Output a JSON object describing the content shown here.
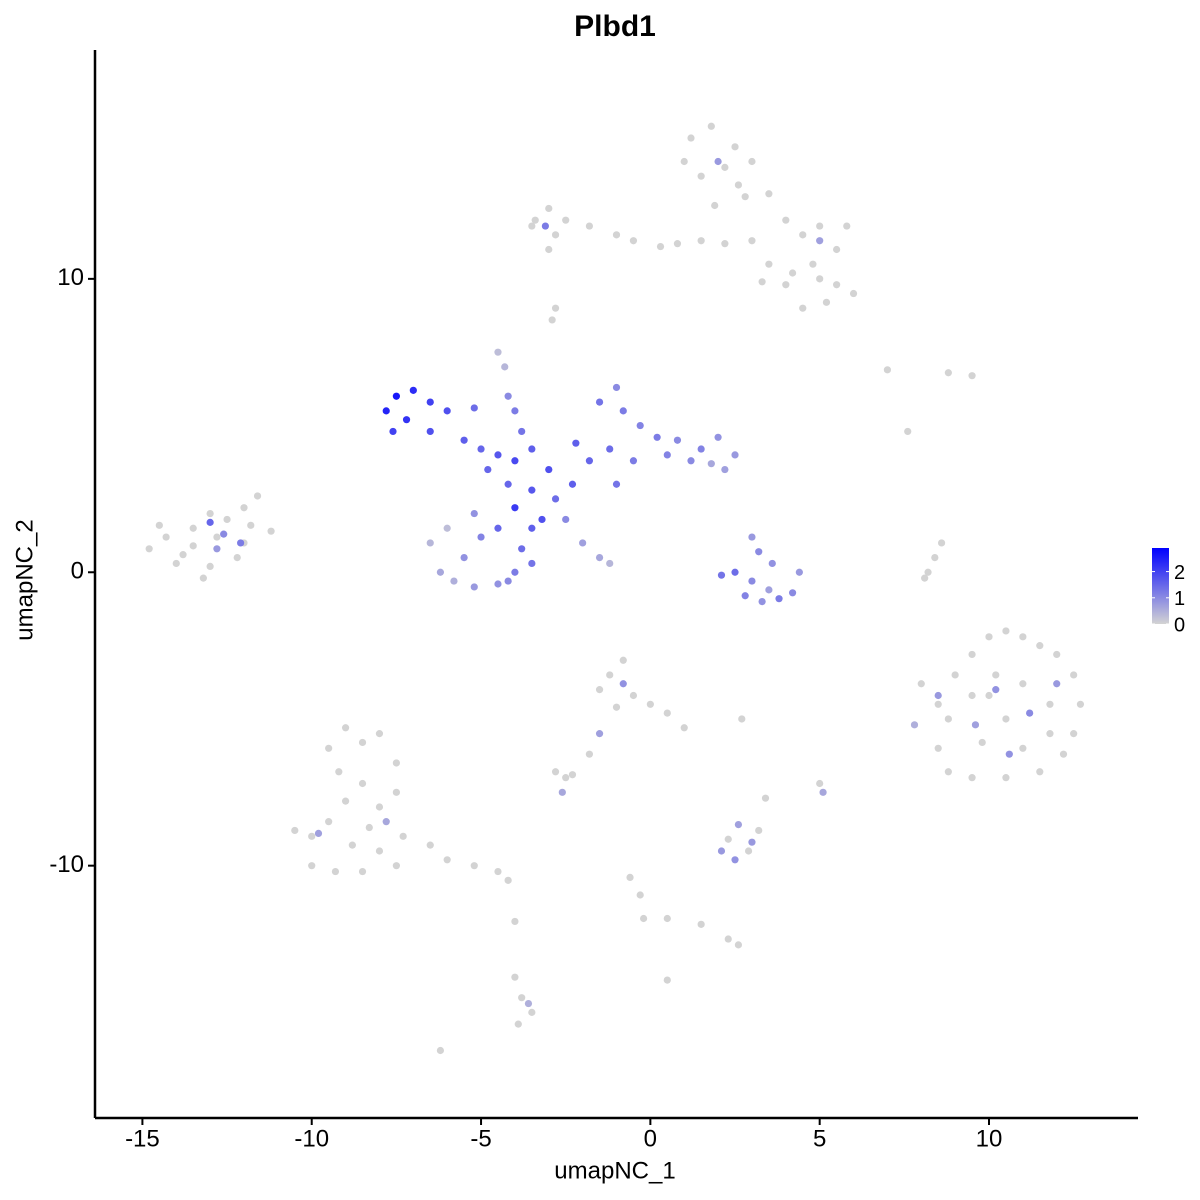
{
  "chart_data": {
    "type": "scatter",
    "title": "Plbd1",
    "x_label": "umapNC_1",
    "y_label": "umapNC_2",
    "xlim": [
      -16.4,
      14.4
    ],
    "ylim": [
      -18.6,
      17.8
    ],
    "xticks": [
      -15,
      -10,
      -5,
      0,
      5,
      10
    ],
    "yticks": [
      -10,
      0,
      10
    ],
    "color_low": "#d3d3d3",
    "color_high": "#0000ff",
    "colorlim": [
      0,
      2.9
    ],
    "colorticks": [
      0,
      1,
      2
    ],
    "x": [
      1.2,
      1.8,
      2.5,
      1.5,
      2.2,
      3,
      2.8,
      1.9,
      3.5,
      4,
      4.5,
      5,
      5.8,
      5.5,
      4.8,
      5.5,
      6,
      5.2,
      4.5,
      4,
      3.5,
      3,
      2.2,
      1.5,
      0.8,
      0.3,
      -0.5,
      -1,
      -1.8,
      -2.5,
      -3,
      -3.4,
      -2.8,
      -3,
      -3.5,
      1.0,
      2.6,
      3.3,
      4.2,
      5,
      2.0,
      -3.1,
      5,
      -2.9,
      -2.8,
      -14.8,
      -14.3,
      -13.8,
      -13.5,
      -13,
      -12.5,
      -12,
      -11.6,
      -11.2,
      -12,
      -13,
      -14,
      -13.5,
      -12.8,
      -12.2,
      -11.8,
      -14.5,
      -13.2,
      -13,
      -12.6,
      -12.1,
      -12.8,
      -7.5,
      -7.8,
      -7,
      -7.2,
      -6.5,
      -6,
      -7.6,
      -5.5,
      -5,
      -6.5,
      -5.2,
      -4.5,
      -4,
      -3.5,
      -3,
      -4.2,
      -3.5,
      -2.8,
      -2.3,
      -4.8,
      -3.8,
      -4,
      -3.2,
      -3.5,
      -4.5,
      -4.3,
      -4.2,
      -4,
      -1.5,
      -1,
      -0.8,
      -0.3,
      0.2,
      0.8,
      1.5,
      2,
      2.5,
      2.2,
      1.2,
      -1.2,
      -1.8,
      -2.2,
      -0.5,
      -1,
      0.5,
      1.8,
      -6.5,
      -6.2,
      -5.8,
      -5.2,
      -4.5,
      -4,
      -3.8,
      -4.5,
      -5,
      -5.5,
      -6,
      -5.2,
      -4.2,
      -3.5,
      -2.5,
      -2,
      -1.5,
      -1.2,
      3,
      3.2,
      2.5,
      2.1,
      2.8,
      3.3,
      3.8,
      4.2,
      4.4,
      3.6,
      3.0,
      3.5,
      8,
      8.5,
      9,
      9.5,
      10,
      10.5,
      11,
      11.5,
      12,
      12.5,
      12.7,
      12.5,
      12.2,
      11.5,
      10.5,
      9.5,
      8.8,
      8.5,
      8.8,
      9.5,
      10.2,
      11,
      11.8,
      10.5,
      9.8,
      11,
      11.8,
      10,
      8.5,
      10.2,
      11.2,
      9.6,
      12,
      10.6,
      -9.5,
      -9,
      -8.5,
      -8,
      -7.5,
      -7.5,
      -8,
      -8.5,
      -9,
      -9.5,
      -10,
      -10.5,
      -10,
      -9.3,
      -8.5,
      -8,
      -7.3,
      -7.5,
      -6.5,
      -6,
      -5.2,
      -4.5,
      -4.2,
      -9.2,
      -8.3,
      -8.8,
      -9.8,
      -7.8,
      -1.2,
      -0.8,
      -1.5,
      -0.5,
      0,
      0.5,
      1,
      -1,
      -0.8,
      -2.8,
      -2.5,
      -2.3,
      -2.6,
      -1.5,
      -1.8,
      2.1,
      2.5,
      2.9,
      3.2,
      2.6,
      2.3,
      3.0,
      -0.6,
      -0.3,
      -0.2,
      0.5,
      1.5,
      2.3,
      2.6,
      -4,
      -3.8,
      -3.5,
      -3.9,
      -3.6,
      -6.2,
      -4,
      0.5,
      8.2,
      8.4,
      8.6,
      8.1,
      5.0,
      5.1,
      7.8,
      8.8,
      9.5,
      7.6,
      7,
      2.7,
      3.4
    ],
    "y": [
      14.8,
      15.2,
      14.5,
      13.5,
      13.8,
      14,
      12.8,
      12.5,
      12.9,
      12,
      11.5,
      11.8,
      11.8,
      11,
      10.5,
      9.8,
      9.5,
      9.2,
      9,
      9.8,
      10.5,
      11.3,
      11.2,
      11.3,
      11.2,
      11.1,
      11.3,
      11.5,
      11.8,
      12,
      12.4,
      12,
      11.5,
      11,
      11.8,
      14.0,
      13.2,
      9.9,
      10.2,
      10,
      14.0,
      11.8,
      11.3,
      8.6,
      9.0,
      0.8,
      1.2,
      0.6,
      1.5,
      2,
      1.8,
      2.2,
      2.6,
      1.4,
      1,
      0.2,
      0.3,
      0.9,
      1.2,
      0.5,
      1.6,
      1.6,
      -0.2,
      1.7,
      1.3,
      1.0,
      0.8,
      6,
      5.5,
      6.2,
      5.2,
      5.8,
      5.5,
      4.8,
      4.5,
      4.2,
      4.8,
      5.6,
      4,
      3.8,
      4.2,
      3.5,
      3,
      2.8,
      2.5,
      3,
      3.5,
      4.8,
      2.2,
      1.8,
      1.5,
      7.5,
      7.0,
      6,
      5.5,
      5.8,
      6.3,
      5.5,
      5,
      4.6,
      4.5,
      4.2,
      4.6,
      4.0,
      3.5,
      3.8,
      4.2,
      3.8,
      4.4,
      3.8,
      3,
      4.0,
      3.7,
      1,
      0,
      -0.3,
      -0.5,
      -0.4,
      0,
      0.8,
      1.5,
      1.2,
      0.5,
      1.5,
      2,
      -0.3,
      0.3,
      1.8,
      1,
      0.5,
      0.3,
      1.2,
      0.7,
      0,
      -0.1,
      -0.8,
      -1,
      -0.9,
      -0.7,
      0,
      0.3,
      -0.3,
      -0.6,
      -3.8,
      -4.5,
      -3.5,
      -2.8,
      -2.2,
      -2,
      -2.2,
      -2.5,
      -2.8,
      -3.5,
      -4.5,
      -5.5,
      -6.2,
      -6.8,
      -7,
      -7,
      -6.8,
      -6,
      -5,
      -4.2,
      -3.5,
      -3.8,
      -4.5,
      -5,
      -5.8,
      -6,
      -5.5,
      -4.2,
      -4.2,
      -4,
      -4.8,
      -5.2,
      -3.8,
      -6.2,
      -6,
      -5.3,
      -5.8,
      -5.5,
      -6.5,
      -7.5,
      -8,
      -7.2,
      -7.8,
      -8.5,
      -9,
      -8.8,
      -10,
      -10.2,
      -10.2,
      -9.5,
      -9,
      -10,
      -9.3,
      -9.8,
      -10,
      -10.2,
      -10.5,
      -6.8,
      -8.7,
      -9.3,
      -8.9,
      -8.5,
      -3.5,
      -3.0,
      -4,
      -4.2,
      -4.5,
      -4.8,
      -5.3,
      -4.6,
      -3.8,
      -6.8,
      -7.0,
      -6.9,
      -7.5,
      -5.5,
      -6.2,
      -9.5,
      -9.8,
      -9.5,
      -8.8,
      -8.6,
      -9.1,
      -9.2,
      -10.4,
      -11,
      -11.8,
      -11.8,
      -12,
      -12.5,
      -12.7,
      -13.8,
      -14.5,
      -15,
      -15.4,
      -14.7,
      -16.3,
      -11.9,
      -13.9,
      0,
      0.5,
      1.0,
      -0.2,
      -7.2,
      -7.5,
      -5.2,
      6.8,
      6.7,
      4.8,
      6.9,
      -5.0,
      -7.7
    ],
    "values": [
      0,
      0,
      0,
      0,
      0,
      0,
      0,
      0,
      0,
      0,
      0,
      0,
      0,
      0,
      0,
      0,
      0,
      0,
      0,
      0,
      0,
      0,
      0,
      0,
      0,
      0,
      0,
      0,
      0,
      0,
      0,
      0,
      0,
      0,
      0,
      0,
      0,
      0,
      0,
      0,
      0.8,
      1.2,
      0.7,
      0,
      0,
      0,
      0,
      0,
      0,
      0,
      0,
      0,
      0,
      0,
      0,
      0,
      0,
      0,
      0,
      0,
      0,
      0,
      0,
      1.5,
      1.0,
      1.2,
      0.8,
      2.6,
      2.4,
      2.3,
      2.2,
      2.0,
      1.8,
      2.0,
      1.6,
      1.5,
      1.8,
      1.4,
      1.7,
      1.9,
      1.6,
      1.8,
      1.5,
      1.7,
      1.4,
      1.6,
      1.5,
      1.3,
      2.1,
      1.8,
      1.6,
      0.3,
      0.4,
      1.0,
      1.2,
      1.3,
      1.0,
      1.2,
      1.1,
      1.2,
      1.0,
      1.1,
      0.9,
      0.8,
      0.7,
      1.0,
      1.4,
      1.5,
      1.6,
      1.2,
      1.3,
      1.1,
      0.6,
      0.4,
      0.6,
      0.5,
      0.8,
      0.9,
      1.2,
      1.4,
      1.5,
      1.1,
      0.9,
      0.3,
      0.9,
      1.0,
      1.3,
      1.0,
      0.7,
      0.6,
      0.4,
      0.8,
      1.0,
      1.4,
      1.3,
      1.1,
      0.9,
      1.2,
      1.0,
      0.8,
      0.9,
      1.0,
      0.7,
      0,
      0,
      0,
      0,
      0,
      0,
      0,
      0,
      0,
      0,
      0,
      0,
      0,
      0,
      0,
      0,
      0,
      0,
      0,
      0,
      0,
      0,
      0,
      0,
      0,
      0,
      0,
      0,
      0.8,
      0.9,
      1.0,
      0.7,
      0.8,
      0.9,
      0,
      0,
      0,
      0,
      0,
      0,
      0,
      0,
      0,
      0,
      0,
      0,
      0,
      0,
      0,
      0,
      0,
      0,
      0,
      0,
      0,
      0,
      0,
      0,
      0,
      0,
      0.7,
      0.6,
      0,
      0,
      0,
      0,
      0,
      0,
      0,
      0,
      0.9,
      0,
      0,
      0,
      0.6,
      0.7,
      0,
      0.8,
      0.9,
      0,
      0,
      0.7,
      0,
      0.8,
      0,
      0,
      0,
      0,
      0,
      0,
      0,
      0,
      0,
      0,
      0,
      0.5,
      0,
      0,
      0,
      0,
      0,
      0,
      0,
      0,
      0.6,
      0.5,
      0,
      0,
      0,
      0,
      0,
      0
    ]
  }
}
